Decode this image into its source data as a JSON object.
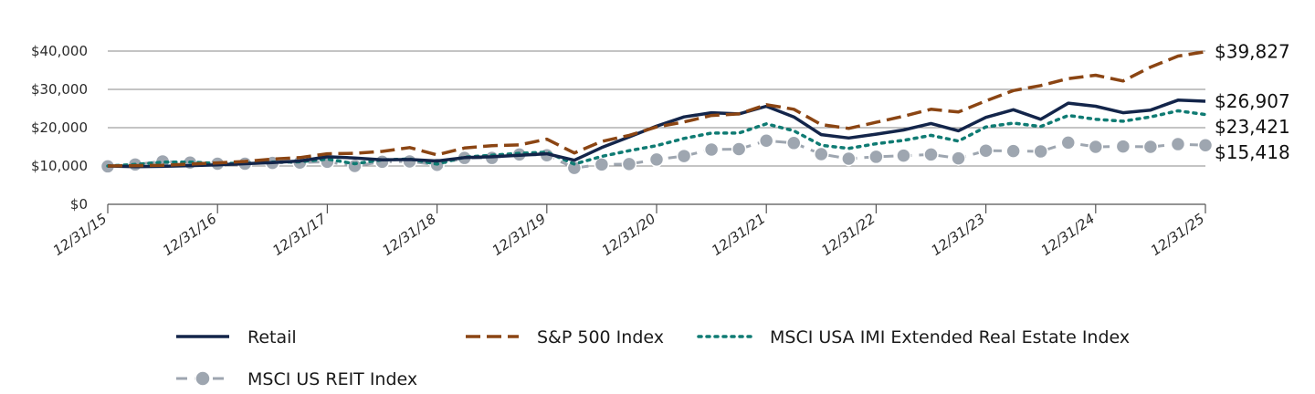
{
  "chart_data": {
    "type": "line",
    "title": "",
    "xlabel": "",
    "ylabel": "",
    "ylim": [
      0,
      40000
    ],
    "yticks": [
      0,
      10000,
      20000,
      30000,
      40000
    ],
    "ytick_labels": [
      "$0",
      "$10,000",
      "$20,000",
      "$30,000",
      "$40,000"
    ],
    "xtick_labels": [
      "12/31/15",
      "12/31/16",
      "12/31/17",
      "12/31/18",
      "12/31/19",
      "12/31/20",
      "12/31/21",
      "12/31/22",
      "12/31/23",
      "12/31/24",
      "12/31/25"
    ],
    "grid": true,
    "legend_position": "bottom",
    "series": [
      {
        "name": "Retail",
        "color": "#13254a",
        "style": "solid",
        "end_label": "$26,907",
        "values": [
          10000,
          9800,
          9900,
          10100,
          10300,
          10600,
          10900,
          11300,
          12400,
          12100,
          11600,
          11700,
          11300,
          12200,
          12400,
          12800,
          13200,
          11500,
          14800,
          17600,
          20400,
          22800,
          23900,
          23600,
          25600,
          22800,
          18200,
          17300,
          18300,
          19400,
          21100,
          19200,
          22700,
          24700,
          22200,
          26400,
          25600,
          23900,
          24600,
          27200,
          26907
        ]
      },
      {
        "name": "S&P 500 Index",
        "color": "#8b4513",
        "style": "dashed",
        "end_label": "$39,827",
        "values": [
          10000,
          10100,
          10200,
          10500,
          10800,
          11200,
          11800,
          12200,
          13200,
          13300,
          13800,
          14800,
          12900,
          14700,
          15300,
          15500,
          17000,
          13400,
          16400,
          18000,
          20200,
          21500,
          23200,
          23600,
          26000,
          24800,
          20800,
          19800,
          21400,
          23000,
          24800,
          24100,
          27000,
          29700,
          31000,
          32800,
          33700,
          32200,
          35800,
          38700,
          39827
        ]
      },
      {
        "name": "MSCI USA IMI Extended Real Estate Index",
        "color": "#0f7b73",
        "style": "dotted",
        "end_label": "$23,421",
        "values": [
          10000,
          10400,
          11000,
          11000,
          10700,
          10700,
          11000,
          11100,
          11800,
          10600,
          11600,
          11800,
          10500,
          12300,
          12800,
          13300,
          13600,
          10500,
          12500,
          14000,
          15300,
          17200,
          18600,
          18600,
          21000,
          19200,
          15400,
          14600,
          15800,
          16700,
          18000,
          16500,
          20200,
          21200,
          20300,
          23200,
          22200,
          21700,
          22800,
          24400,
          23421
        ]
      },
      {
        "name": "MSCI US REIT Index",
        "color": "#9ea6b0",
        "style": "dashed-marker",
        "end_label": "$15,418",
        "values": [
          9900,
          10400,
          11200,
          10900,
          10600,
          10600,
          10800,
          10900,
          11100,
          10000,
          11100,
          11200,
          10300,
          12100,
          12100,
          13000,
          12800,
          9500,
          10400,
          10500,
          11700,
          12600,
          14300,
          14400,
          16600,
          16000,
          13100,
          11900,
          12400,
          12700,
          13000,
          12000,
          14000,
          13900,
          13800,
          16100,
          15000,
          15100,
          15000,
          15700,
          15418
        ]
      }
    ]
  }
}
